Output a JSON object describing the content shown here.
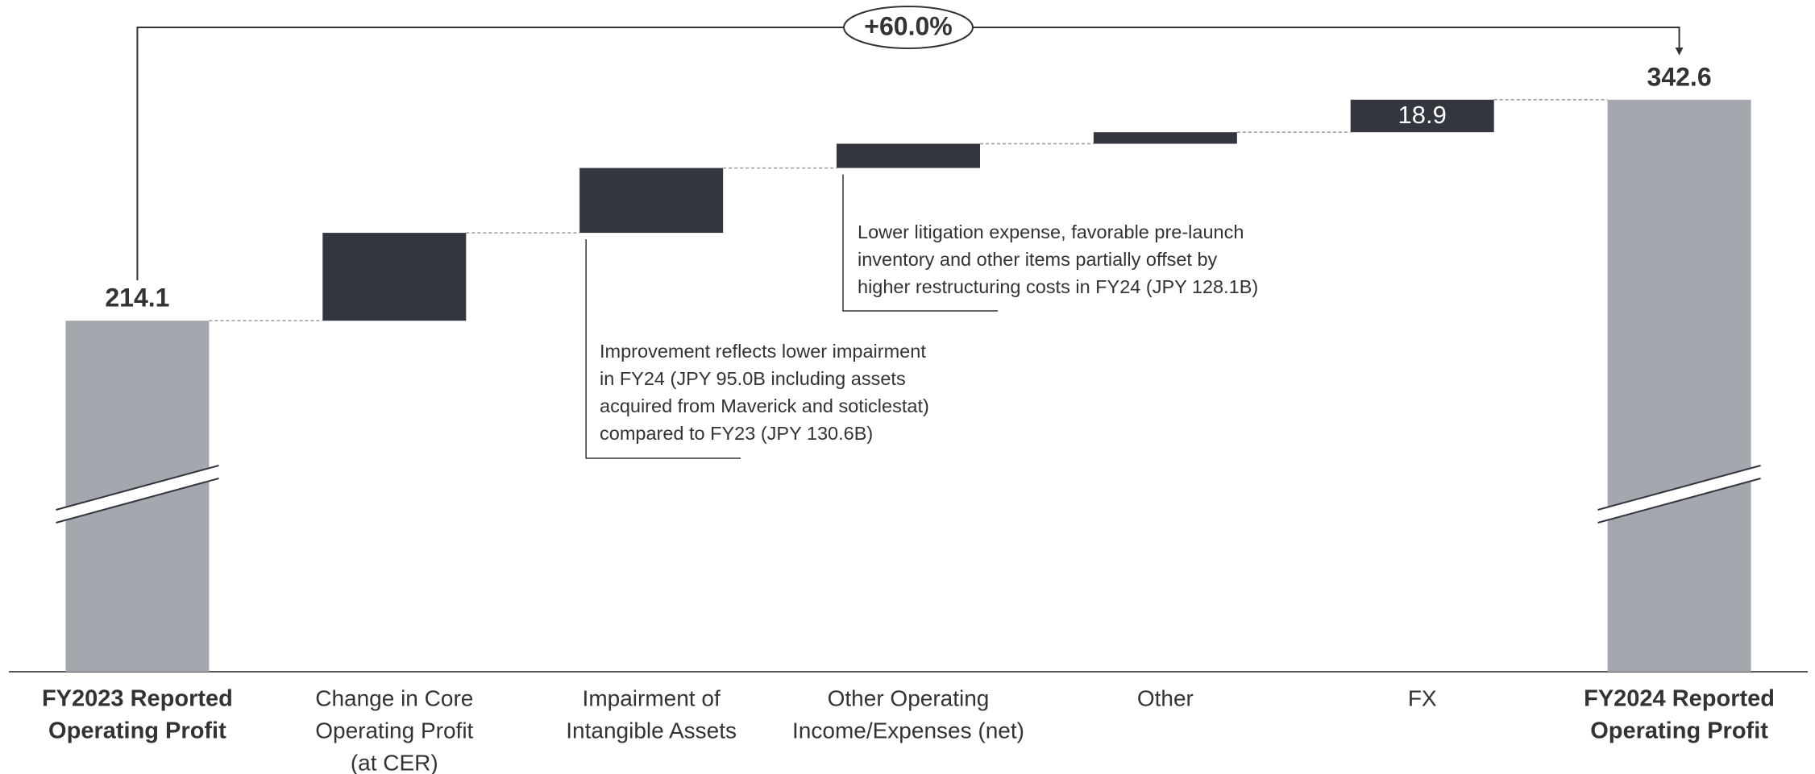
{
  "chart_data": {
    "type": "waterfall",
    "categories": [
      [
        "FY2023 Reported",
        "Operating Profit"
      ],
      [
        "Change in Core",
        "Operating Profit",
        "(at CER)"
      ],
      [
        "Impairment of",
        "Intangible Assets"
      ],
      [
        "Other Operating",
        "Income/Expenses (net)"
      ],
      [
        "Other"
      ],
      [
        "FX"
      ],
      [
        "FY2024 Reported",
        "Operating Profit"
      ]
    ],
    "kinds": [
      "total",
      "delta",
      "delta",
      "delta",
      "delta",
      "delta",
      "total"
    ],
    "values": [
      214.1,
      51.1,
      37.7,
      14.1,
      6.7,
      18.9,
      342.6
    ],
    "value_labels": [
      "214.1",
      null,
      null,
      null,
      null,
      "18.9",
      "342.6"
    ],
    "total_color": "#a5a7ae",
    "delta_color": "#33363e",
    "ylim": [
      10,
      350
    ],
    "axis_break": true,
    "change_label": "+60.0%",
    "annotations": [
      [
        "Improvement reflects lower impairment",
        "in FY24 (JPY 95.0B including assets",
        "acquired from Maverick and soticlestat)",
        "compared to FY23 (JPY 130.6B)"
      ],
      [
        "Lower litigation expense, favorable pre-launch",
        "inventory and other items partially offset by",
        "higher restructuring costs in FY24 (JPY 128.1B)"
      ]
    ]
  }
}
